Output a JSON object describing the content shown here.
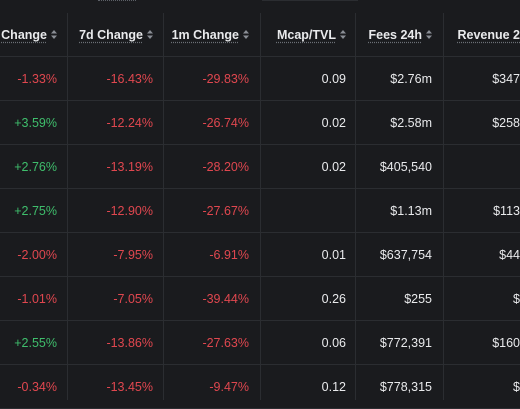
{
  "table": {
    "columns": [
      {
        "key": "change_1d",
        "label": "Change"
      },
      {
        "key": "change_7d",
        "label": "7d Change"
      },
      {
        "key": "change_1m",
        "label": "1m Change"
      },
      {
        "key": "mcap_tvl",
        "label": "Mcap/TVL"
      },
      {
        "key": "fees_24h",
        "label": "Fees 24h"
      },
      {
        "key": "revenue_24h",
        "label": "Revenue 2"
      }
    ],
    "rows": [
      {
        "change_1d": "-1.33%",
        "change_7d": "-16.43%",
        "change_1m": "-29.83%",
        "mcap_tvl": "0.09",
        "fees_24h": "$2.76m",
        "revenue_24h": "$347"
      },
      {
        "change_1d": "+3.59%",
        "change_7d": "-12.24%",
        "change_1m": "-26.74%",
        "mcap_tvl": "0.02",
        "fees_24h": "$2.58m",
        "revenue_24h": "$258"
      },
      {
        "change_1d": "+2.76%",
        "change_7d": "-13.19%",
        "change_1m": "-28.20%",
        "mcap_tvl": "0.02",
        "fees_24h": "$405,540",
        "revenue_24h": ""
      },
      {
        "change_1d": "+2.75%",
        "change_7d": "-12.90%",
        "change_1m": "-27.67%",
        "mcap_tvl": "",
        "fees_24h": "$1.13m",
        "revenue_24h": "$113"
      },
      {
        "change_1d": "-2.00%",
        "change_7d": "-7.95%",
        "change_1m": "-6.91%",
        "mcap_tvl": "0.01",
        "fees_24h": "$637,754",
        "revenue_24h": "$44"
      },
      {
        "change_1d": "-1.01%",
        "change_7d": "-7.05%",
        "change_1m": "-39.44%",
        "mcap_tvl": "0.26",
        "fees_24h": "$255",
        "revenue_24h": "$"
      },
      {
        "change_1d": "+2.55%",
        "change_7d": "-13.86%",
        "change_1m": "-27.63%",
        "mcap_tvl": "0.06",
        "fees_24h": "$772,391",
        "revenue_24h": "$160"
      },
      {
        "change_1d": "-0.34%",
        "change_7d": "-13.45%",
        "change_1m": "-9.47%",
        "mcap_tvl": "0.12",
        "fees_24h": "$778,315",
        "revenue_24h": "$"
      }
    ]
  },
  "colors": {
    "background": "#1a1b1e",
    "negative": "#e0474f",
    "positive": "#3fbe6c",
    "text": "#e9eaec",
    "divider": "#2b2d31"
  }
}
